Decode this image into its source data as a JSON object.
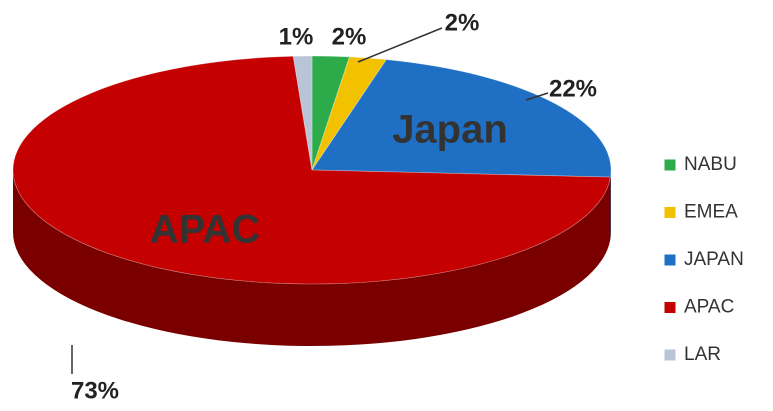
{
  "chart_data": {
    "type": "pie",
    "categories": [
      "NABU",
      "EMEA",
      "JAPAN",
      "APAC",
      "LAR"
    ],
    "values": [
      2,
      2,
      22,
      73,
      1
    ],
    "value_labels": [
      "2%",
      "2%",
      "22%",
      "73%",
      "1%"
    ],
    "colors": [
      "#2daa4a",
      "#f2c200",
      "#1f6fc4",
      "#c40000",
      "#b9c4d6"
    ],
    "annotations": [
      "Japan",
      "APAC"
    ],
    "legend": "right"
  }
}
